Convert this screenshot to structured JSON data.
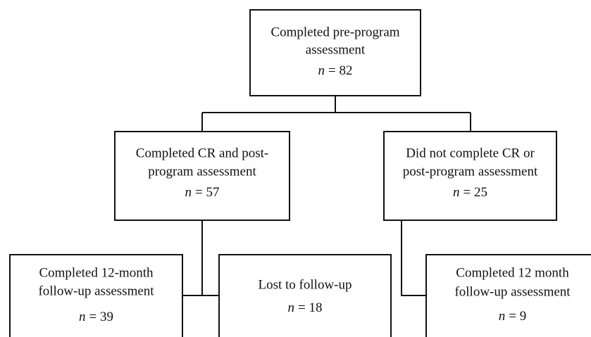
{
  "nodes": [
    {
      "lines": [
        "Completed pre-program",
        "assessment"
      ],
      "count_symbol": "n",
      "count_value": "= 82"
    },
    {
      "lines": [
        "Completed CR and post-",
        "program assessment"
      ],
      "count_symbol": "n",
      "count_value": "= 57"
    },
    {
      "lines": [
        "Did not complete CR or",
        "post-program assessment"
      ],
      "count_symbol": "n",
      "count_value": "= 25"
    },
    {
      "lines": [
        "Completed 12-month",
        "follow-up assessment"
      ],
      "count_symbol": "n",
      "count_value": "= 39"
    },
    {
      "lines": [
        "Lost to follow-up"
      ],
      "count_symbol": "n",
      "count_value": "= 18"
    },
    {
      "lines": [
        "Completed 12 month",
        "follow-up assessment"
      ],
      "count_symbol": "n",
      "count_value": "= 9"
    }
  ]
}
